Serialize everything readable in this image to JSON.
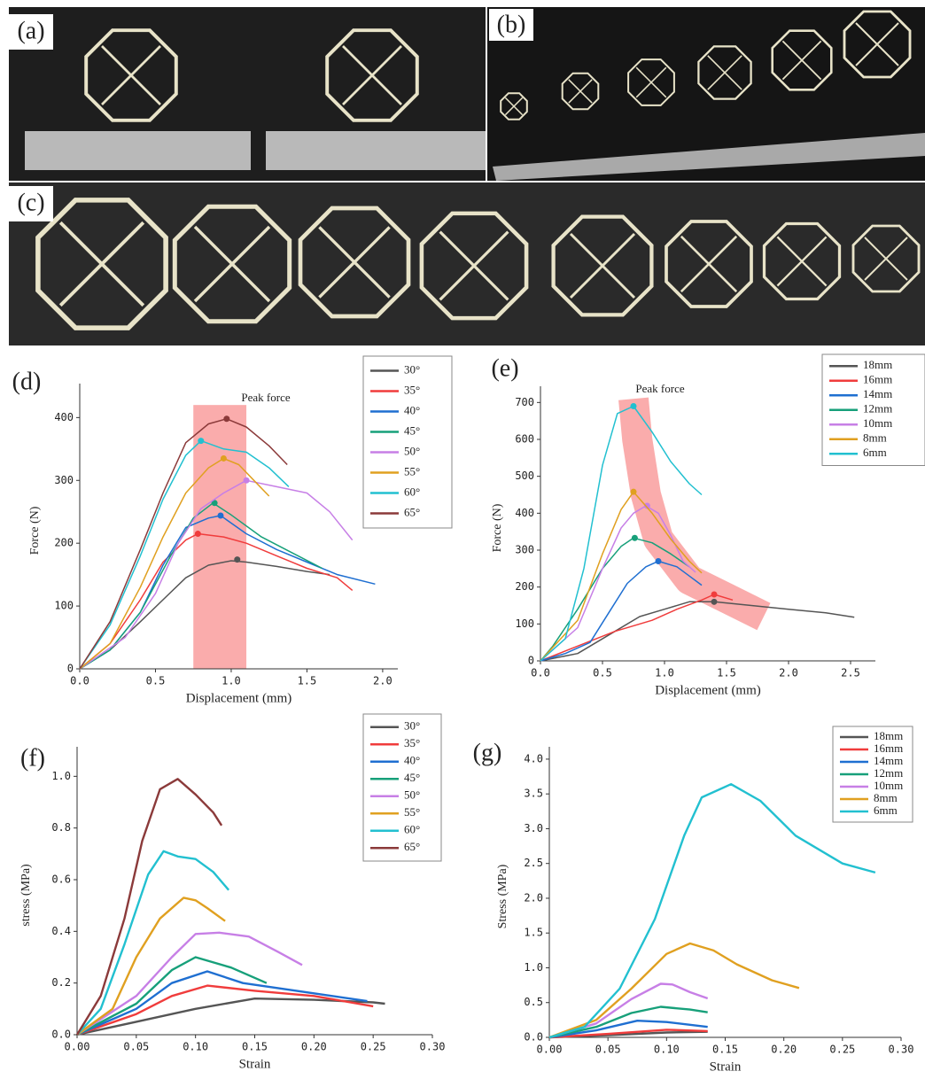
{
  "photos": [
    {
      "label": "(a)"
    },
    {
      "label": "(b)"
    },
    {
      "label": "(c)"
    }
  ],
  "chart_data": [
    {
      "type": "line",
      "panel_label": "(d)",
      "annotation": "Peak force",
      "x_label": "Displacement (mm)",
      "y_label": "Force (N)",
      "xlim": [
        0,
        2.1
      ],
      "ylim": [
        0,
        440
      ],
      "xticks": [
        {
          "value": 0,
          "label": "0.0"
        },
        0.5,
        {
          "value": 1,
          "label": "1.0"
        },
        1.5,
        {
          "value": 2,
          "label": "2.0"
        }
      ],
      "yticks": [
        0,
        100,
        200,
        300,
        400
      ],
      "highlight": {
        "xlim": [
          0.75,
          1.1
        ],
        "ylim": [
          0,
          420
        ]
      },
      "series": [
        {
          "name": "30°",
          "color": "#555555",
          "x": [
            0,
            0.2,
            0.4,
            0.55,
            0.7,
            0.85,
            1.0,
            1.1,
            1.3,
            1.5,
            1.65
          ],
          "values": [
            0,
            30,
            75,
            110,
            145,
            165,
            172,
            170,
            163,
            155,
            150
          ],
          "peak": {
            "x": 1.04,
            "y": 174
          }
        },
        {
          "name": "35°",
          "color": "#f03c3c",
          "x": [
            0,
            0.2,
            0.4,
            0.55,
            0.7,
            0.78,
            0.95,
            1.1,
            1.3,
            1.5,
            1.7,
            1.8
          ],
          "values": [
            0,
            40,
            110,
            170,
            205,
            215,
            210,
            200,
            180,
            160,
            145,
            125
          ],
          "peak": {
            "x": 0.78,
            "y": 215
          }
        },
        {
          "name": "40°",
          "color": "#1f6fd1",
          "x": [
            0,
            0.2,
            0.4,
            0.55,
            0.7,
            0.85,
            0.93,
            1.1,
            1.3,
            1.5,
            1.7,
            1.95
          ],
          "values": [
            0,
            30,
            90,
            165,
            225,
            240,
            244,
            215,
            190,
            170,
            150,
            135
          ],
          "peak": {
            "x": 0.93,
            "y": 244
          }
        },
        {
          "name": "45°",
          "color": "#17a07a",
          "x": [
            0,
            0.2,
            0.4,
            0.6,
            0.75,
            0.88,
            1.0,
            1.2,
            1.4,
            1.6
          ],
          "values": [
            0,
            30,
            90,
            180,
            240,
            264,
            245,
            210,
            185,
            160
          ],
          "peak": {
            "x": 0.89,
            "y": 264
          }
        },
        {
          "name": "50°",
          "color": "#c77fe6",
          "x": [
            0,
            0.3,
            0.5,
            0.65,
            0.8,
            0.95,
            1.1,
            1.3,
            1.5,
            1.65,
            1.8
          ],
          "values": [
            0,
            50,
            120,
            200,
            255,
            280,
            300,
            290,
            280,
            250,
            205
          ],
          "peak": {
            "x": 1.1,
            "y": 300
          }
        },
        {
          "name": "55°",
          "color": "#e0a020",
          "x": [
            0,
            0.2,
            0.4,
            0.55,
            0.7,
            0.85,
            0.95,
            1.05,
            1.15,
            1.25
          ],
          "values": [
            0,
            40,
            130,
            210,
            280,
            320,
            335,
            325,
            300,
            275
          ],
          "peak": {
            "x": 0.95,
            "y": 335
          }
        },
        {
          "name": "60°",
          "color": "#22c0d0",
          "x": [
            0,
            0.2,
            0.4,
            0.55,
            0.7,
            0.8,
            0.95,
            1.1,
            1.25,
            1.38
          ],
          "values": [
            0,
            70,
            180,
            270,
            340,
            363,
            350,
            345,
            320,
            290
          ],
          "peak": {
            "x": 0.8,
            "y": 363
          }
        },
        {
          "name": "65°",
          "color": "#8b3a3a",
          "x": [
            0,
            0.2,
            0.4,
            0.55,
            0.7,
            0.85,
            0.97,
            1.1,
            1.25,
            1.37
          ],
          "values": [
            0,
            75,
            190,
            280,
            360,
            390,
            398,
            385,
            355,
            325
          ],
          "peak": {
            "x": 0.97,
            "y": 398
          }
        }
      ]
    },
    {
      "type": "line",
      "panel_label": "(e)",
      "annotation": "Peak force",
      "x_label": "Displacement (mm)",
      "y_label": "Force (N)",
      "xlim": [
        0,
        2.7
      ],
      "ylim": [
        0,
        720
      ],
      "xticks": [
        {
          "value": 0,
          "label": "0.0"
        },
        0.5,
        {
          "value": 1,
          "label": "1.0"
        },
        1.5,
        {
          "value": 2,
          "label": "2.0"
        },
        2.5
      ],
      "yticks": [
        0,
        100,
        200,
        300,
        400,
        500,
        600,
        700
      ],
      "highlight_path": {
        "x": [
          0.75,
          0.78,
          0.85,
          0.95,
          1.2,
          1.5,
          1.8
        ],
        "y": [
          710,
          600,
          450,
          330,
          220,
          170,
          120
        ]
      },
      "series": [
        {
          "name": "18mm",
          "color": "#555555",
          "x": [
            0,
            0.3,
            0.6,
            0.8,
            1.0,
            1.2,
            1.4,
            1.7,
            2.0,
            2.3,
            2.53
          ],
          "values": [
            0,
            20,
            80,
            120,
            140,
            160,
            160,
            150,
            140,
            130,
            118
          ],
          "peak": {
            "x": 1.4,
            "y": 160
          }
        },
        {
          "name": "16mm",
          "color": "#f03c3c",
          "x": [
            0,
            0.3,
            0.6,
            0.9,
            1.1,
            1.3,
            1.4,
            1.55
          ],
          "values": [
            0,
            40,
            80,
            110,
            140,
            165,
            180,
            165
          ],
          "peak": {
            "x": 1.4,
            "y": 180
          }
        },
        {
          "name": "14mm",
          "color": "#1f6fd1",
          "x": [
            0,
            0.2,
            0.4,
            0.55,
            0.7,
            0.85,
            0.95,
            1.1,
            1.2,
            1.3
          ],
          "values": [
            0,
            20,
            50,
            130,
            210,
            255,
            270,
            255,
            230,
            205
          ],
          "peak": {
            "x": 0.95,
            "y": 270
          }
        },
        {
          "name": "12mm",
          "color": "#17a07a",
          "x": [
            0,
            0.1,
            0.3,
            0.5,
            0.65,
            0.75,
            0.9,
            1.05,
            1.2
          ],
          "values": [
            0,
            40,
            140,
            250,
            310,
            333,
            320,
            290,
            255
          ],
          "peak": {
            "x": 0.76,
            "y": 333
          }
        },
        {
          "name": "10mm",
          "color": "#c77fe6",
          "x": [
            0,
            0.3,
            0.5,
            0.65,
            0.75,
            0.85,
            0.95,
            1.05,
            1.15,
            1.25
          ],
          "values": [
            0,
            90,
            250,
            360,
            400,
            420,
            400,
            340,
            270,
            240
          ],
          "peak": {
            "x": 0.86,
            "y": 420
          }
        },
        {
          "name": "8mm",
          "color": "#e0a020",
          "x": [
            0,
            0.3,
            0.5,
            0.65,
            0.75,
            0.9,
            1.05,
            1.2,
            1.3
          ],
          "values": [
            0,
            110,
            290,
            410,
            458,
            400,
            330,
            270,
            238
          ],
          "peak": {
            "x": 0.75,
            "y": 458
          }
        },
        {
          "name": "6mm",
          "color": "#22c0d0",
          "x": [
            0,
            0.2,
            0.35,
            0.5,
            0.62,
            0.75,
            0.9,
            1.05,
            1.2,
            1.3
          ],
          "values": [
            0,
            60,
            250,
            530,
            670,
            690,
            620,
            540,
            480,
            450
          ],
          "peak": {
            "x": 0.75,
            "y": 690
          }
        }
      ]
    },
    {
      "type": "line",
      "panel_label": "(f)",
      "x_label": "Strain",
      "y_label": "stress (MPa)",
      "xlim": [
        0,
        0.3
      ],
      "ylim": [
        0,
        1.08
      ],
      "xticks": [
        {
          "value": 0,
          "label": "0.00"
        },
        0.05,
        {
          "value": 0.1,
          "label": "0.10"
        },
        0.15,
        {
          "value": 0.2,
          "label": "0.20"
        },
        0.25,
        {
          "value": 0.3,
          "label": "0.30"
        }
      ],
      "yticks": [
        {
          "value": 0,
          "label": "0.0"
        },
        0.2,
        0.4,
        0.6,
        0.8,
        {
          "value": 1,
          "label": "1.0"
        }
      ],
      "series": [
        {
          "name": "30°",
          "color": "#555555",
          "x": [
            0,
            0.05,
            0.1,
            0.15,
            0.2,
            0.25,
            0.26
          ],
          "values": [
            0,
            0.05,
            0.1,
            0.14,
            0.135,
            0.125,
            0.12
          ]
        },
        {
          "name": "35°",
          "color": "#f03c3c",
          "x": [
            0,
            0.05,
            0.08,
            0.11,
            0.15,
            0.2,
            0.25
          ],
          "values": [
            0,
            0.08,
            0.15,
            0.19,
            0.17,
            0.15,
            0.11
          ]
        },
        {
          "name": "40°",
          "color": "#1f6fd1",
          "x": [
            0,
            0.05,
            0.08,
            0.11,
            0.14,
            0.2,
            0.245
          ],
          "values": [
            0,
            0.1,
            0.2,
            0.245,
            0.2,
            0.16,
            0.13
          ]
        },
        {
          "name": "45°",
          "color": "#17a07a",
          "x": [
            0,
            0.05,
            0.08,
            0.1,
            0.13,
            0.16
          ],
          "values": [
            0,
            0.12,
            0.25,
            0.3,
            0.26,
            0.2
          ]
        },
        {
          "name": "50°",
          "color": "#c77fe6",
          "x": [
            0,
            0.05,
            0.08,
            0.1,
            0.12,
            0.145,
            0.17,
            0.19
          ],
          "values": [
            0,
            0.15,
            0.3,
            0.39,
            0.395,
            0.38,
            0.32,
            0.27
          ]
        },
        {
          "name": "55°",
          "color": "#e0a020",
          "x": [
            0,
            0.03,
            0.05,
            0.07,
            0.09,
            0.1,
            0.11,
            0.125
          ],
          "values": [
            0,
            0.1,
            0.3,
            0.45,
            0.53,
            0.52,
            0.49,
            0.44
          ]
        },
        {
          "name": "60°",
          "color": "#22c0d0",
          "x": [
            0,
            0.02,
            0.04,
            0.06,
            0.073,
            0.085,
            0.1,
            0.115,
            0.128
          ],
          "values": [
            0,
            0.1,
            0.35,
            0.62,
            0.71,
            0.69,
            0.68,
            0.63,
            0.56
          ]
        },
        {
          "name": "65°",
          "color": "#8b3a3a",
          "x": [
            0,
            0.02,
            0.04,
            0.055,
            0.07,
            0.085,
            0.1,
            0.115,
            0.122
          ],
          "values": [
            0,
            0.15,
            0.45,
            0.75,
            0.95,
            0.99,
            0.93,
            0.86,
            0.81
          ]
        }
      ]
    },
    {
      "type": "line",
      "panel_label": "(g)",
      "x_label": "Strain",
      "y_label": "Stress (MPa)",
      "xlim": [
        0,
        0.3
      ],
      "ylim": [
        0,
        4.05
      ],
      "xticks": [
        {
          "value": 0,
          "label": "0.00"
        },
        0.05,
        {
          "value": 0.1,
          "label": "0.10"
        },
        0.15,
        {
          "value": 0.2,
          "label": "0.20"
        },
        0.25,
        {
          "value": 0.3,
          "label": "0.30"
        }
      ],
      "yticks": [
        {
          "value": 0,
          "label": "0.0"
        },
        0.5,
        {
          "value": 1,
          "label": "1.0"
        },
        1.5,
        {
          "value": 2,
          "label": "2.0"
        },
        2.5,
        {
          "value": 3,
          "label": "3.0"
        },
        3.5,
        {
          "value": 4,
          "label": "4.0"
        }
      ],
      "series": [
        {
          "name": "18mm",
          "color": "#555555",
          "x": [
            0,
            0.05,
            0.1,
            0.135
          ],
          "values": [
            0,
            0.03,
            0.07,
            0.08
          ]
        },
        {
          "name": "16mm",
          "color": "#f03c3c",
          "x": [
            0,
            0.05,
            0.1,
            0.135
          ],
          "values": [
            0,
            0.05,
            0.11,
            0.09
          ]
        },
        {
          "name": "14mm",
          "color": "#1f6fd1",
          "x": [
            0,
            0.04,
            0.075,
            0.1,
            0.135
          ],
          "values": [
            0,
            0.1,
            0.24,
            0.22,
            0.15
          ]
        },
        {
          "name": "12mm",
          "color": "#17a07a",
          "x": [
            0,
            0.04,
            0.07,
            0.095,
            0.12,
            0.135
          ],
          "values": [
            0,
            0.15,
            0.35,
            0.44,
            0.4,
            0.36
          ]
        },
        {
          "name": "10mm",
          "color": "#c77fe6",
          "x": [
            0,
            0.04,
            0.07,
            0.095,
            0.105,
            0.12,
            0.135
          ],
          "values": [
            0,
            0.2,
            0.55,
            0.77,
            0.76,
            0.65,
            0.56
          ]
        },
        {
          "name": "8mm",
          "color": "#e0a020",
          "x": [
            0,
            0.04,
            0.07,
            0.1,
            0.12,
            0.14,
            0.16,
            0.19,
            0.213
          ],
          "values": [
            0,
            0.25,
            0.7,
            1.2,
            1.35,
            1.25,
            1.05,
            0.82,
            0.71
          ]
        },
        {
          "name": "6mm",
          "color": "#22c0d0",
          "x": [
            0,
            0.03,
            0.06,
            0.09,
            0.115,
            0.13,
            0.155,
            0.18,
            0.21,
            0.25,
            0.278
          ],
          "values": [
            0,
            0.15,
            0.7,
            1.7,
            2.9,
            3.45,
            3.64,
            3.4,
            2.9,
            2.5,
            2.37
          ]
        }
      ]
    }
  ]
}
